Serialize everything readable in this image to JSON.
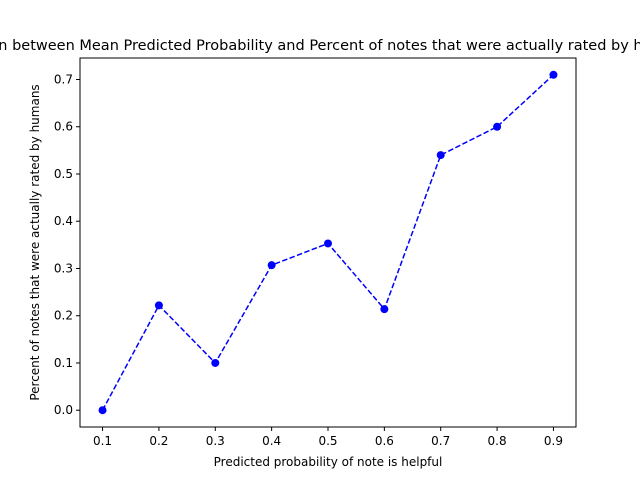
{
  "chart_data": {
    "type": "line",
    "title": "Relation between Mean Predicted Probability and Percent of notes that were actually rated by humans",
    "xlabel": "Predicted probability of note is helpful",
    "ylabel": "Percent of notes that were actually rated by humans",
    "xlim": [
      0.06,
      0.94
    ],
    "ylim": [
      -0.0355,
      0.7455
    ],
    "xticks": [
      "0.1",
      "0.2",
      "0.3",
      "0.4",
      "0.5",
      "0.6",
      "0.7",
      "0.8",
      "0.9"
    ],
    "yticks": [
      "0.0",
      "0.1",
      "0.2",
      "0.3",
      "0.4",
      "0.5",
      "0.6",
      "0.7"
    ],
    "grid": false,
    "series": [
      {
        "color": "#0000ff",
        "line_style": "dashed",
        "marker": "circle",
        "x": [
          0.1,
          0.2,
          0.3,
          0.4,
          0.5,
          0.6,
          0.7,
          0.8,
          0.9
        ],
        "y": [
          0.0,
          0.222,
          0.1,
          0.307,
          0.353,
          0.214,
          0.54,
          0.6,
          0.71
        ]
      }
    ]
  }
}
